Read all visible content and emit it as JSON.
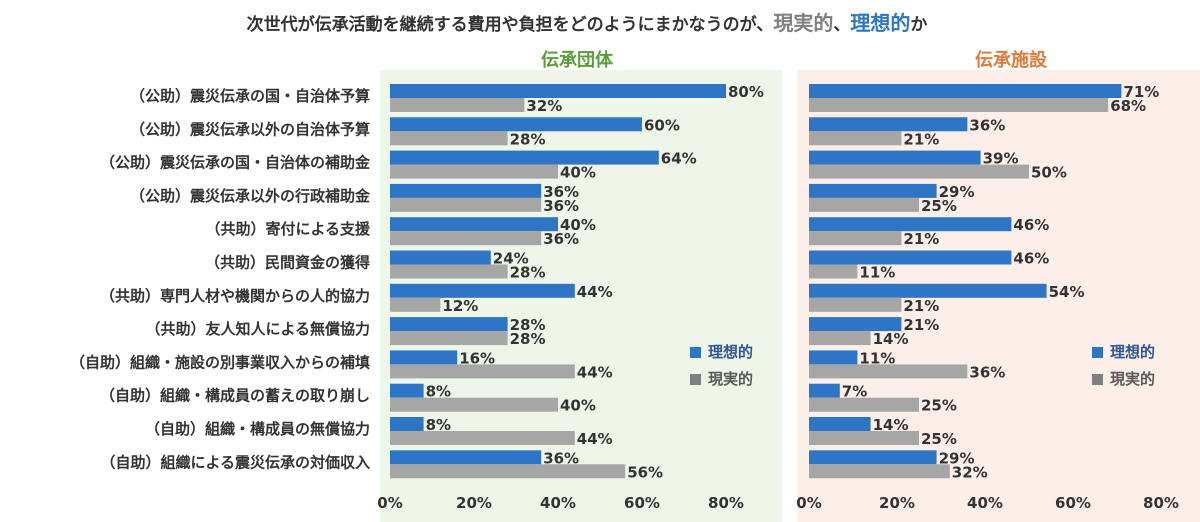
{
  "title": {
    "main": "次世代が伝承活動を継続する費用や負担をどのようにまかなうのが、",
    "real": "現実的",
    "sep": "、",
    "ideal": "理想的",
    "tail": "か"
  },
  "colors": {
    "ideal": "#2e75c5",
    "real": "#a6a6a6",
    "left_panel_bg": "#eef6e9",
    "right_panel_bg": "#fcefea",
    "left_title": "#5a9e3a",
    "right_title": "#e07b3c"
  },
  "chart_data": [
    {
      "type": "bar",
      "orientation": "horizontal",
      "title": "伝承団体",
      "categories": [
        "（公助）震災伝承の国・自治体予算",
        "（公助）震災伝承以外の自治体予算",
        "（公助）震災伝承の国・自治体の補助金",
        "（公助）震災伝承以外の行政補助金",
        "（共助）寄付による支援",
        "（共助）民間資金の獲得",
        "（共助）専門人材や機関からの人的協力",
        "（共助）友人知人による無償協力",
        "（自助）組織・施設の別事業収入からの補填",
        "（自助）組織・構成員の蓄えの取り崩し",
        "（自助）組織・構成員の無償協力",
        "（自助）組織による震災伝承の対価収入"
      ],
      "series": [
        {
          "name": "理想的",
          "values": [
            80,
            60,
            64,
            36,
            40,
            24,
            44,
            28,
            16,
            8,
            8,
            36
          ]
        },
        {
          "name": "現実的",
          "values": [
            32,
            28,
            40,
            36,
            36,
            28,
            12,
            28,
            44,
            40,
            44,
            56
          ]
        }
      ],
      "xlim": [
        0,
        80
      ],
      "xticks": [
        "0%",
        "20%",
        "40%",
        "60%",
        "80%"
      ],
      "value_suffix": "%",
      "grid": false,
      "legend": "right"
    },
    {
      "type": "bar",
      "orientation": "horizontal",
      "title": "伝承施設",
      "categories_shared": true,
      "series": [
        {
          "name": "理想的",
          "values": [
            71,
            36,
            39,
            29,
            46,
            46,
            54,
            21,
            11,
            7,
            14,
            29
          ]
        },
        {
          "name": "現実的",
          "values": [
            68,
            21,
            50,
            25,
            21,
            11,
            21,
            14,
            36,
            25,
            25,
            32
          ]
        }
      ],
      "xlim": [
        0,
        80
      ],
      "xticks": [
        "0%",
        "20%",
        "40%",
        "60%",
        "80%"
      ],
      "value_suffix": "%",
      "grid": false,
      "legend": "right"
    }
  ]
}
